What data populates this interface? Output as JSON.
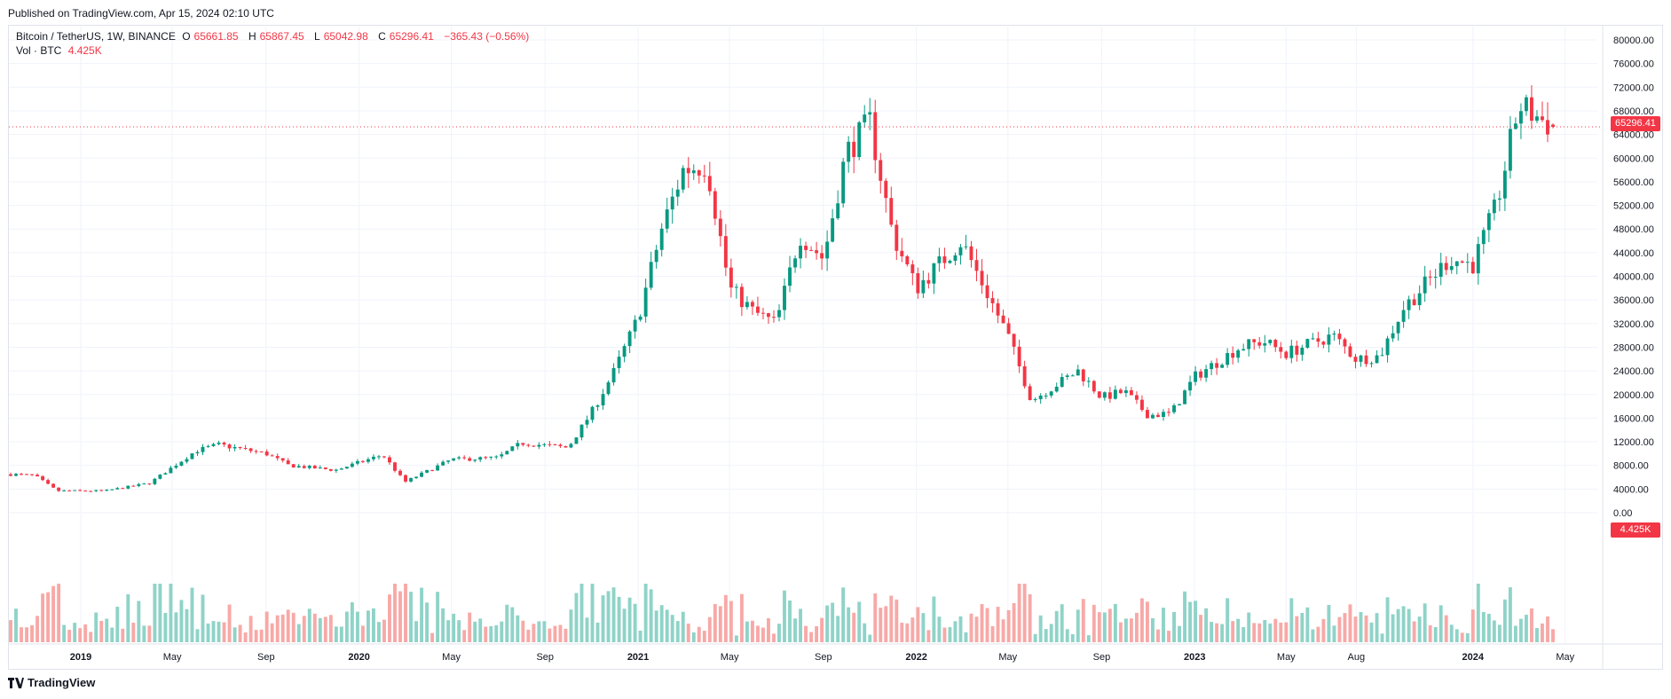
{
  "header": {
    "published": "Published on TradingView.com, Apr 15, 2024 02:10 UTC"
  },
  "legend": {
    "symbol": "Bitcoin / TetherUS, 1W, BINANCE",
    "open_label": "O",
    "open": "65661.85",
    "high_label": "H",
    "high": "65867.45",
    "low_label": "L",
    "low": "65042.98",
    "close_label": "C",
    "close": "65296.41",
    "change": "−365.43 (−0.56%)",
    "vol_label": "Vol · BTC",
    "vol_value": "4.425K"
  },
  "last_price_tag": "65296.41",
  "volume_tag": "4.425K",
  "footer": {
    "logo_text": "TradingView"
  },
  "colors": {
    "up": "#089981",
    "down": "#f23645",
    "vol_up": "#8fd3c8",
    "vol_down": "#f7a9a7",
    "grid": "#f0f3fa",
    "text": "#131722"
  },
  "chart_data": {
    "type": "candlestick",
    "title": "Bitcoin / TetherUS, 1W, BINANCE",
    "y_ticks": [
      "80000.00",
      "76000.00",
      "72000.00",
      "68000.00",
      "64000.00",
      "60000.00",
      "56000.00",
      "52000.00",
      "48000.00",
      "44000.00",
      "40000.00",
      "36000.00",
      "32000.00",
      "28000.00",
      "24000.00",
      "20000.00",
      "16000.00",
      "12000.00",
      "8000.00",
      "4000.00",
      "0.00"
    ],
    "x_ticks": [
      "2019",
      "May",
      "Sep",
      "2020",
      "May",
      "Sep",
      "2021",
      "May",
      "Sep",
      "2022",
      "May",
      "Sep",
      "2023",
      "May",
      "Aug",
      "2024",
      "May"
    ],
    "ylim": [
      0,
      81000
    ],
    "price_series_approx": {
      "start": "2018-10",
      "end": "2024-04-15",
      "interval": "1W",
      "waypoints": [
        [
          "2018-10",
          6500
        ],
        [
          "2018-11",
          6300
        ],
        [
          "2018-12",
          3700
        ],
        [
          "2019-02",
          3700
        ],
        [
          "2019-04",
          5000
        ],
        [
          "2019-06",
          10500
        ],
        [
          "2019-07",
          11500
        ],
        [
          "2019-09",
          10000
        ],
        [
          "2019-10",
          8000
        ],
        [
          "2019-12",
          7200
        ],
        [
          "2020-02",
          9800
        ],
        [
          "2020-03",
          5200
        ],
        [
          "2020-05",
          9000
        ],
        [
          "2020-07",
          9300
        ],
        [
          "2020-08",
          11800
        ],
        [
          "2020-10",
          11000
        ],
        [
          "2020-11",
          17000
        ],
        [
          "2020-12",
          24000
        ],
        [
          "2021-01",
          33000
        ],
        [
          "2021-02",
          48000
        ],
        [
          "2021-03",
          58000
        ],
        [
          "2021-04",
          59000
        ],
        [
          "2021-05",
          38000
        ],
        [
          "2021-06",
          34000
        ],
        [
          "2021-07",
          32000
        ],
        [
          "2021-08",
          47000
        ],
        [
          "2021-09",
          43000
        ],
        [
          "2021-10",
          61000
        ],
        [
          "2021-11",
          66000
        ],
        [
          "2021-12",
          47000
        ],
        [
          "2022-01",
          38000
        ],
        [
          "2022-03",
          46000
        ],
        [
          "2022-05",
          30000
        ],
        [
          "2022-06",
          19000
        ],
        [
          "2022-08",
          24000
        ],
        [
          "2022-09",
          19500
        ],
        [
          "2022-10",
          20500
        ],
        [
          "2022-11",
          16500
        ],
        [
          "2022-12",
          16800
        ],
        [
          "2023-01",
          23000
        ],
        [
          "2023-03",
          28000
        ],
        [
          "2023-04",
          29000
        ],
        [
          "2023-05",
          27000
        ],
        [
          "2023-07",
          30000
        ],
        [
          "2023-08",
          26000
        ],
        [
          "2023-09",
          26500
        ],
        [
          "2023-10",
          34500
        ],
        [
          "2023-12",
          43000
        ],
        [
          "2024-01",
          42000
        ],
        [
          "2024-02",
          52000
        ],
        [
          "2024-03",
          69000
        ],
        [
          "2024-04",
          65296
        ]
      ]
    },
    "last": {
      "open": 65661.85,
      "high": 65867.45,
      "low": 65042.98,
      "close": 65296.41
    }
  }
}
